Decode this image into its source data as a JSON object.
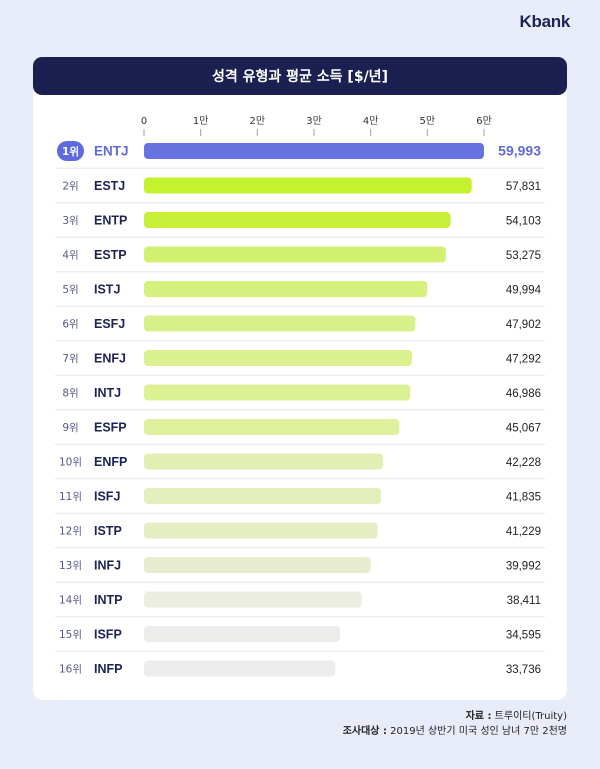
{
  "brand": "Kbank",
  "chart_data": {
    "type": "bar",
    "orientation": "horizontal",
    "title": "성격 유형과 평균 소득 [$/년]",
    "x_ticks": [
      "0",
      "1만",
      "2만",
      "3만",
      "4만",
      "5만",
      "6만"
    ],
    "x_tick_values": [
      0,
      10000,
      20000,
      30000,
      40000,
      50000,
      60000
    ],
    "xlim": [
      0,
      60000
    ],
    "categories": [
      "ENTJ",
      "ESTJ",
      "ENTP",
      "ESTP",
      "ISTJ",
      "ESFJ",
      "ENFJ",
      "INTJ",
      "ESFP",
      "ENFP",
      "ISFJ",
      "ISTP",
      "INFJ",
      "INTP",
      "ISFP",
      "INFP"
    ],
    "ranks": [
      "1위",
      "2위",
      "3위",
      "4위",
      "5위",
      "6위",
      "7위",
      "8위",
      "9위",
      "10위",
      "11위",
      "12위",
      "13위",
      "14위",
      "15위",
      "16위"
    ],
    "values": [
      59993,
      57831,
      54103,
      53275,
      49994,
      47902,
      47292,
      46986,
      45067,
      42228,
      41835,
      41229,
      39992,
      38411,
      34595,
      33736
    ],
    "value_labels": [
      "59,993",
      "57,831",
      "54,103",
      "53,275",
      "49,994",
      "47,902",
      "47,292",
      "46,986",
      "45,067",
      "42,228",
      "41,835",
      "41,229",
      "39,992",
      "38,411",
      "34,595",
      "33,736"
    ],
    "bar_colors": [
      "#6672e0",
      "#c5f22e",
      "#c8ef38",
      "#d2f070",
      "#d6f07e",
      "#d9f08a",
      "#dbf08f",
      "#dcf094",
      "#e0f19e",
      "#e2efb3",
      "#e3efbb",
      "#e5eec3",
      "#e7ecce",
      "#eaede0",
      "#ececea",
      "#ededed"
    ]
  },
  "footer": {
    "source_label": "자료 :",
    "source_value": " 트루이티(Truity)",
    "survey_label": "조사대상 :",
    "survey_value": " 2019년 상반기 미국 성인 남녀 7만 2천명"
  }
}
